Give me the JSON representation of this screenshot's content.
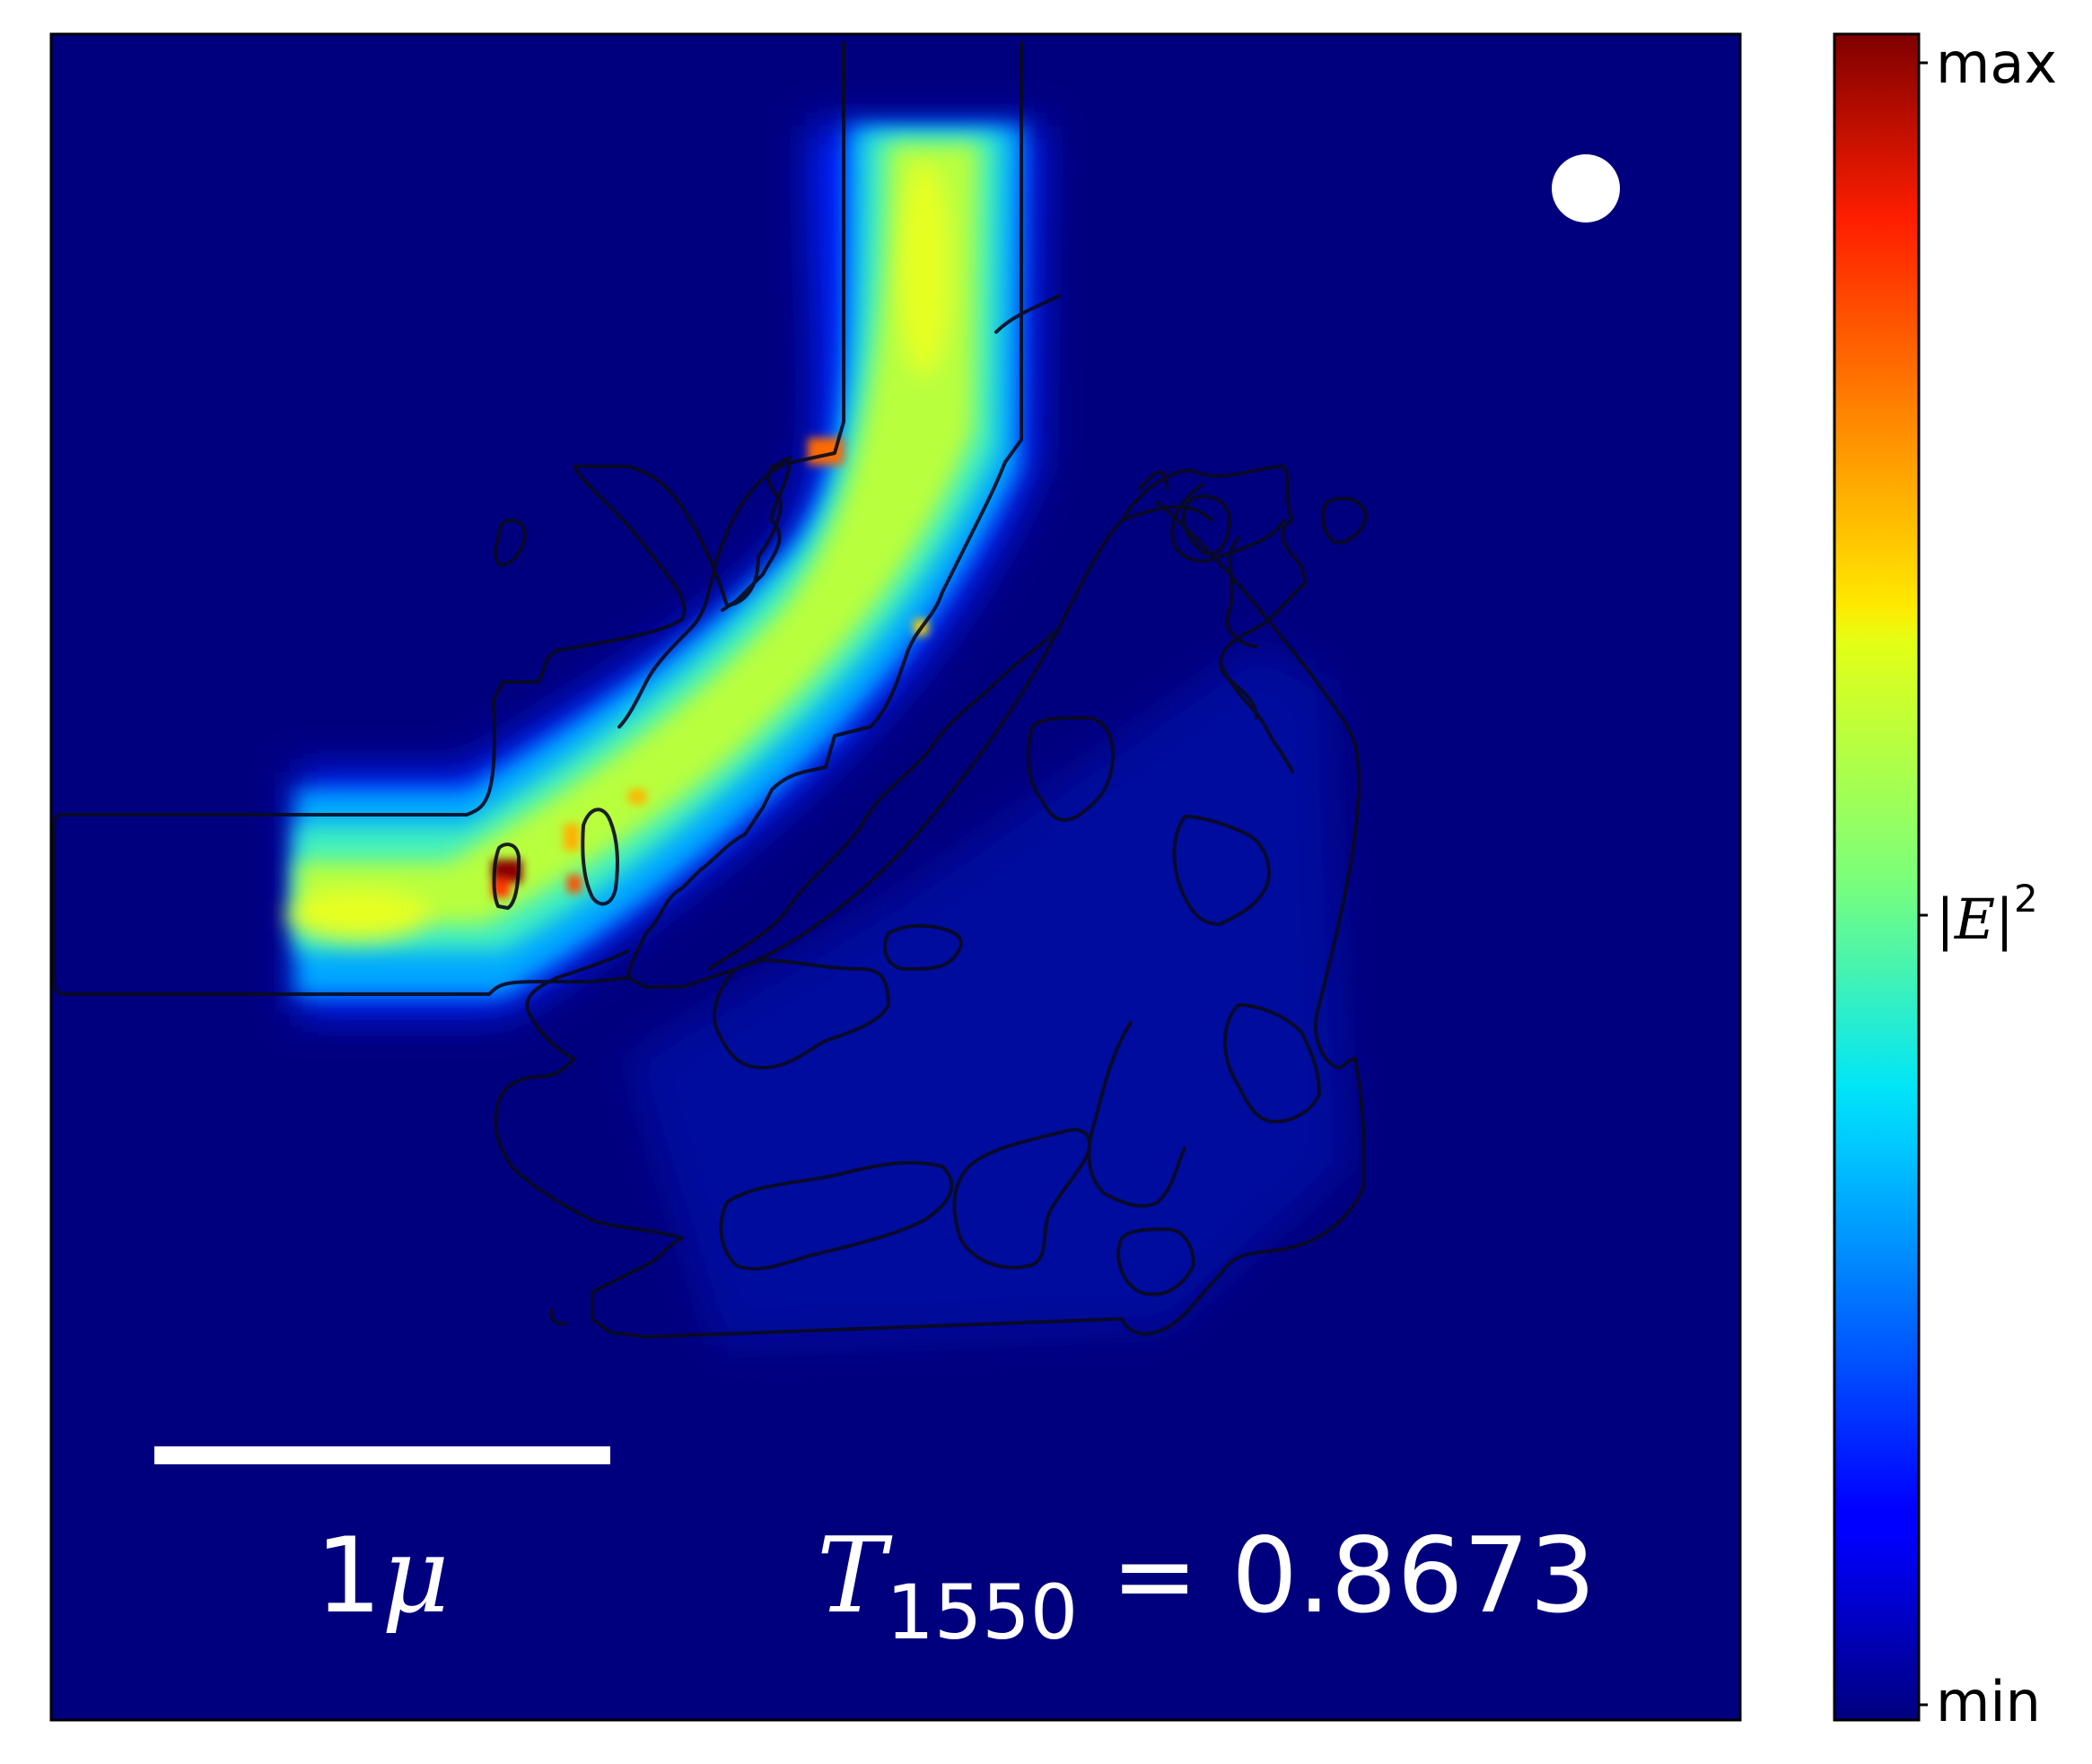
{
  "chart_data": {
    "type": "heatmap",
    "title": "",
    "xlabel": "",
    "ylabel": "",
    "quantity": "|E|",
    "quantity_exponent": "2",
    "colormap": "jet",
    "colorbar": {
      "max_label": "max",
      "min_label": "min",
      "position": "right"
    },
    "scale_bar": {
      "length_label": "1",
      "unit_symbol": "μ"
    },
    "annotation": {
      "symbol": "T",
      "subscript": "1550",
      "equals": " = ",
      "value": "0.8673"
    },
    "source_marker": "white circle, top-right",
    "colors": {
      "background": "#00007f",
      "marker": "#ffffff",
      "outline": "#0a0a1e"
    }
  }
}
